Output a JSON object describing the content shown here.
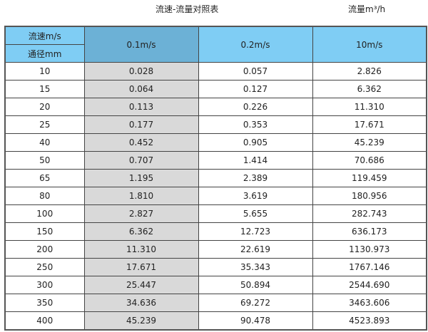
{
  "title": "流速-流量对照表",
  "unit_label": "流量m³/h",
  "header": {
    "velocity_label": "流速m/s",
    "diameter_label": "通径mm",
    "columns": [
      "0.1m/s",
      "0.2m/s",
      "10m/s"
    ]
  },
  "colors": {
    "header": "#7fcdf4",
    "header_highlight": "#6cb1d6",
    "highlight_column": "#d9d9d9"
  },
  "rows": [
    [
      "10",
      "0.028",
      "0.057",
      "2.826"
    ],
    [
      "15",
      "0.064",
      "0.127",
      "6.362"
    ],
    [
      "20",
      "0.113",
      "0.226",
      "11.310"
    ],
    [
      "25",
      "0.177",
      "0.353",
      "17.671"
    ],
    [
      "40",
      "0.452",
      "0.905",
      "45.239"
    ],
    [
      "50",
      "0.707",
      "1.414",
      "70.686"
    ],
    [
      "65",
      "1.195",
      "2.389",
      "119.459"
    ],
    [
      "80",
      "1.810",
      "3.619",
      "180.956"
    ],
    [
      "100",
      "2.827",
      "5.655",
      "282.743"
    ],
    [
      "150",
      "6.362",
      "12.723",
      "636.173"
    ],
    [
      "200",
      "11.310",
      "22.619",
      "1130.973"
    ],
    [
      "250",
      "17.671",
      "35.343",
      "1767.146"
    ],
    [
      "300",
      "25.447",
      "50.894",
      "2544.690"
    ],
    [
      "350",
      "34.636",
      "69.272",
      "3463.606"
    ],
    [
      "400",
      "45.239",
      "90.478",
      "4523.893"
    ]
  ]
}
